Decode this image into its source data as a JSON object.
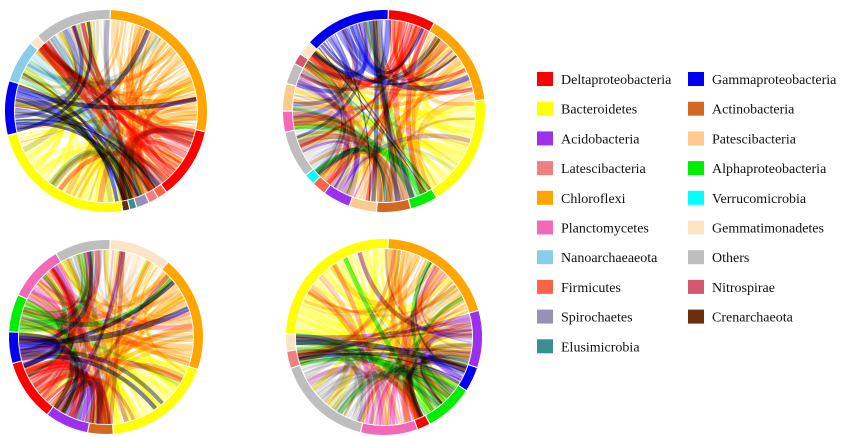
{
  "taxa": [
    {
      "key": "delta",
      "label": "Deltaproteobacteria",
      "color": "#ff0000"
    },
    {
      "key": "gamma",
      "label": "Gammaproteobacteria",
      "color": "#0000ee"
    },
    {
      "key": "bacteroid",
      "label": "Bacteroidetes",
      "color": "#ffff00"
    },
    {
      "key": "actino",
      "label": "Actinobacteria",
      "color": "#d2691e"
    },
    {
      "key": "acido",
      "label": "Acidobacteria",
      "color": "#9b30ee"
    },
    {
      "key": "patesci",
      "label": "Patescibacteria",
      "color": "#fcc98e"
    },
    {
      "key": "latesci",
      "label": "Latescibacteria",
      "color": "#f08080"
    },
    {
      "key": "alpha",
      "label": "Alphaproteobacteria",
      "color": "#00ee00"
    },
    {
      "key": "chloro",
      "label": "Chloroflexi",
      "color": "#ffa500"
    },
    {
      "key": "verruco",
      "label": "Verrucomicrobia",
      "color": "#00ffff"
    },
    {
      "key": "plancto",
      "label": "Planctomycetes",
      "color": "#f468b8"
    },
    {
      "key": "gemmati",
      "label": "Gemmatimonadetes",
      "color": "#fde4c4"
    },
    {
      "key": "nanoarch",
      "label": "Nanoarchaeaeota",
      "color": "#87ceeb"
    },
    {
      "key": "others",
      "label": "Others",
      "color": "#bebebe"
    },
    {
      "key": "firmi",
      "label": "Firmicutes",
      "color": "#ff6347"
    },
    {
      "key": "nitro",
      "label": "Nitrospirae",
      "color": "#d2596e"
    },
    {
      "key": "spiro",
      "label": "Spirochaetes",
      "color": "#9890b8"
    },
    {
      "key": "crenarch",
      "label": "Crenarchaeota",
      "color": "#6b2d0c"
    },
    {
      "key": "elusi",
      "label": "Elusimicrobia",
      "color": "#3a8f8f"
    }
  ],
  "legend": {
    "left": [
      "delta",
      "bacteroid",
      "acido",
      "latesci",
      "chloro",
      "plancto",
      "nanoarch",
      "firmi",
      "spiro",
      "elusi"
    ],
    "right": [
      "gamma",
      "actino",
      "patesci",
      "alpha",
      "verruco",
      "gemmati",
      "others",
      "nitro",
      "crenarch"
    ]
  },
  "diagrams": [
    {
      "id": "chord-top-left",
      "arcs": [
        {
          "taxon": "chloro",
          "share": 29
        },
        {
          "taxon": "delta",
          "share": 12
        },
        {
          "taxon": "firmi",
          "share": 1.5
        },
        {
          "taxon": "latesci",
          "share": 1.5
        },
        {
          "taxon": "spiro",
          "share": 2
        },
        {
          "taxon": "elusi",
          "share": 1
        },
        {
          "taxon": "crenarch",
          "share": 1
        },
        {
          "taxon": "bacteroid",
          "share": 25
        },
        {
          "taxon": "gamma",
          "share": 9
        },
        {
          "taxon": "nanoarch",
          "share": 7
        },
        {
          "taxon": "gemmati",
          "share": 1.5
        },
        {
          "taxon": "others",
          "share": 13
        }
      ]
    },
    {
      "id": "chord-top-right",
      "arcs": [
        {
          "taxon": "delta",
          "share": 7
        },
        {
          "taxon": "chloro",
          "share": 14
        },
        {
          "taxon": "bacteroid",
          "share": 17
        },
        {
          "taxon": "alpha",
          "share": 4
        },
        {
          "taxon": "actino",
          "share": 5
        },
        {
          "taxon": "patesci",
          "share": 4
        },
        {
          "taxon": "acido",
          "share": 4
        },
        {
          "taxon": "firmi",
          "share": 2
        },
        {
          "taxon": "verruco",
          "share": 1.5
        },
        {
          "taxon": "others",
          "share": 7
        },
        {
          "taxon": "plancto",
          "share": 3
        },
        {
          "taxon": "patesci",
          "share": 4
        },
        {
          "taxon": "others",
          "share": 3
        },
        {
          "taxon": "nitro",
          "share": 1.5
        },
        {
          "taxon": "gemmati",
          "share": 2
        },
        {
          "taxon": "gamma",
          "share": 13
        }
      ]
    },
    {
      "id": "chord-bottom-left",
      "arcs": [
        {
          "taxon": "gemmati",
          "share": 10
        },
        {
          "taxon": "chloro",
          "share": 19
        },
        {
          "taxon": "bacteroid",
          "share": 18
        },
        {
          "taxon": "actino",
          "share": 4
        },
        {
          "taxon": "acido",
          "share": 7
        },
        {
          "taxon": "delta",
          "share": 10
        },
        {
          "taxon": "gamma",
          "share": 5
        },
        {
          "taxon": "alpha",
          "share": 6
        },
        {
          "taxon": "plancto",
          "share": 9
        },
        {
          "taxon": "others",
          "share": 9
        }
      ]
    },
    {
      "id": "chord-bottom-right",
      "arcs": [
        {
          "taxon": "chloro",
          "share": 15
        },
        {
          "taxon": "acido",
          "share": 7
        },
        {
          "taxon": "gamma",
          "share": 3
        },
        {
          "taxon": "alpha",
          "share": 6
        },
        {
          "taxon": "delta",
          "share": 1.5
        },
        {
          "taxon": "plancto",
          "share": 7
        },
        {
          "taxon": "others",
          "share": 12
        },
        {
          "taxon": "latesci",
          "share": 2
        },
        {
          "taxon": "gemmati",
          "share": 2
        },
        {
          "taxon": "bacteroid",
          "share": 19
        }
      ]
    }
  ]
}
